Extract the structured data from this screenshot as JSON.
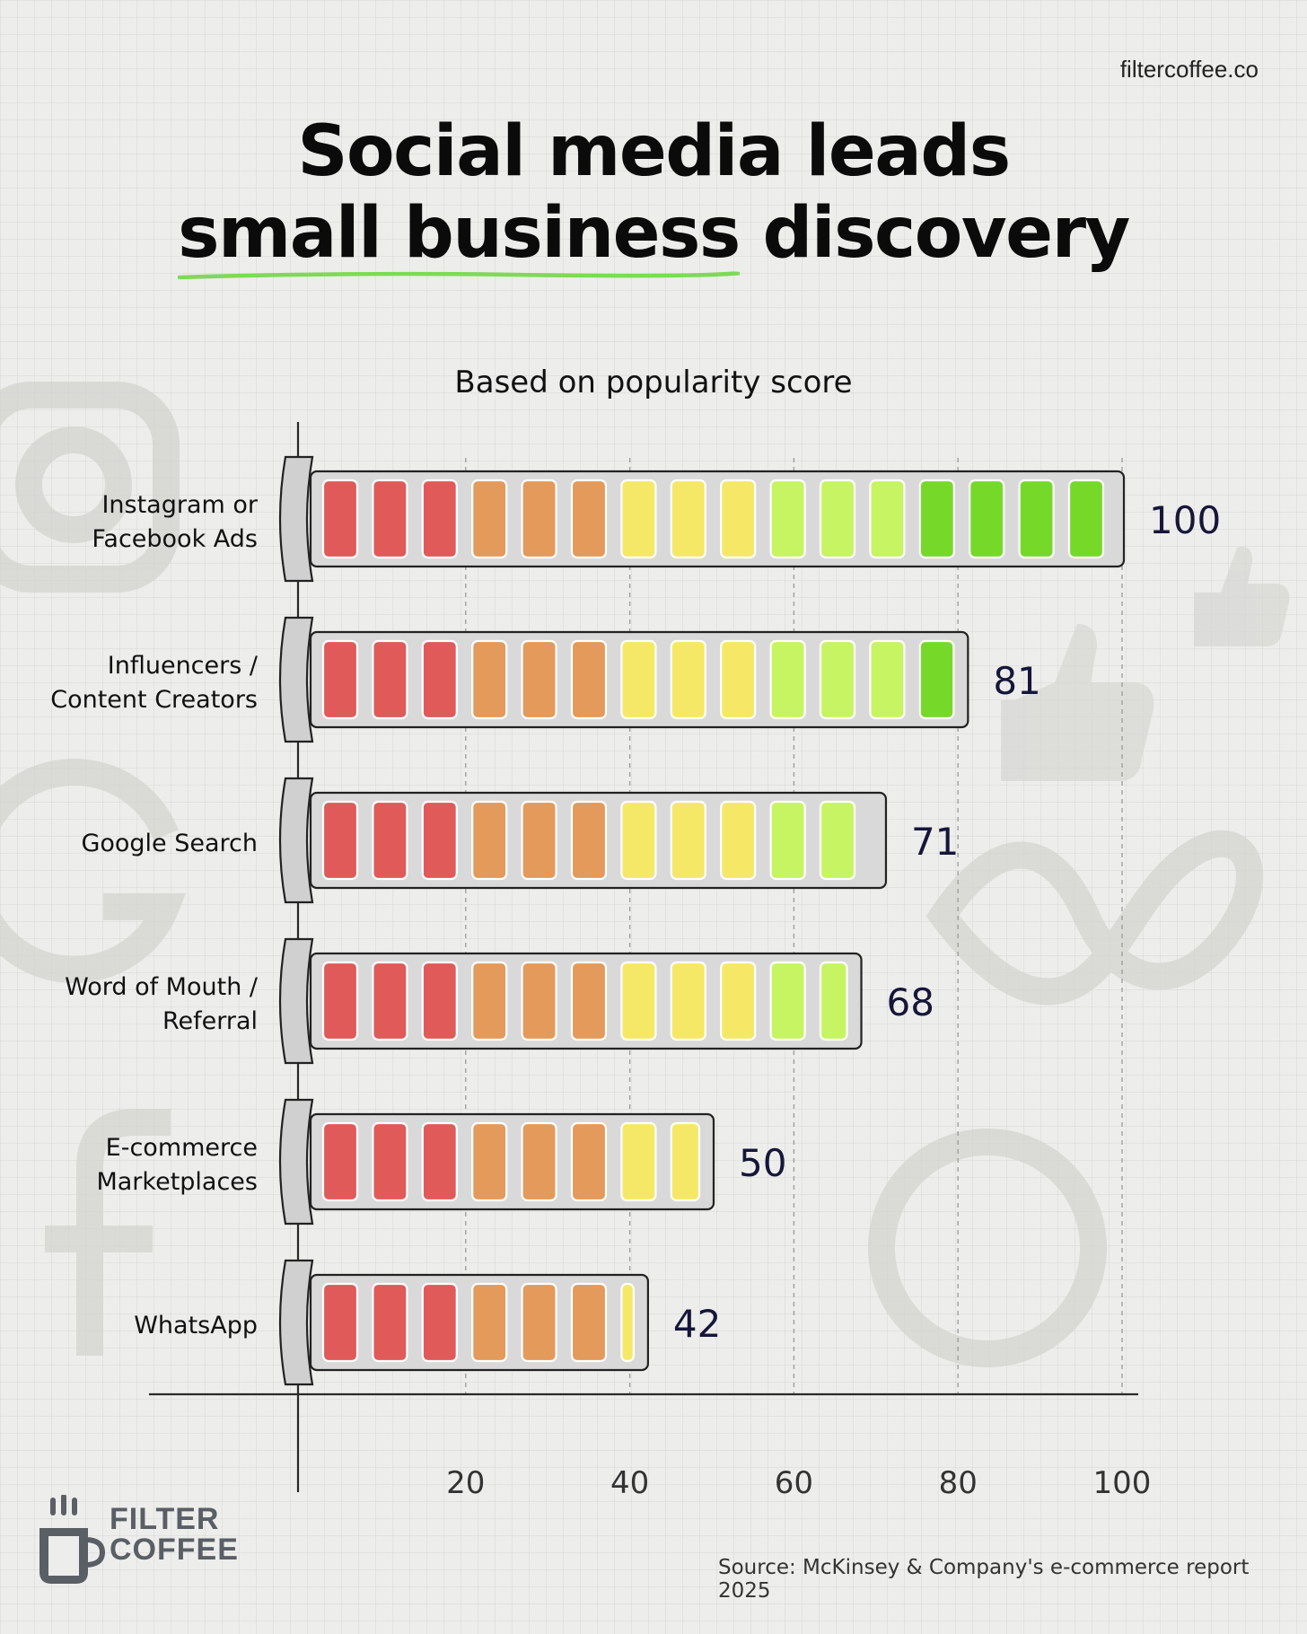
{
  "brand": {
    "url": "filtercoffee.co",
    "logo_line1": "FILTER",
    "logo_line2": "COFFEE"
  },
  "title": {
    "line1": "Social media leads",
    "line2_highlight": "small business",
    "line2_rest": "discovery"
  },
  "subtitle": "Based on popularity score",
  "source": "Source: McKinsey & Company's e-commerce report 2025",
  "colors": {
    "red": "#e05a5a",
    "orange": "#e39a5a",
    "yellow": "#f5e867",
    "lime": "#c6f462",
    "green": "#76d92a",
    "accent_underline": "#7ed957",
    "value_text": "#16163a",
    "track": "#d9d9d9"
  },
  "chart_data": {
    "type": "bar",
    "orientation": "horizontal",
    "title": "Social media leads small business discovery",
    "subtitle": "Based on popularity score",
    "categories": [
      [
        "Instagram or",
        "Facebook Ads"
      ],
      [
        "Influencers /",
        "Content Creators"
      ],
      [
        "Google Search"
      ],
      [
        "Word of Mouth /",
        "Referral"
      ],
      [
        "E-commerce",
        "Marketplaces"
      ],
      [
        "WhatsApp"
      ]
    ],
    "values": [
      100,
      81,
      71,
      68,
      50,
      42
    ],
    "value_labels": [
      "100",
      "81",
      "71",
      "68",
      "50",
      "42"
    ],
    "xlim": [
      0,
      100
    ],
    "xticks": [
      20,
      40,
      60,
      80,
      100
    ],
    "xtick_labels": [
      "20",
      "40",
      "60",
      "80",
      "100"
    ],
    "grid": "vertical-dashed",
    "xlabel": "",
    "ylabel": ""
  }
}
